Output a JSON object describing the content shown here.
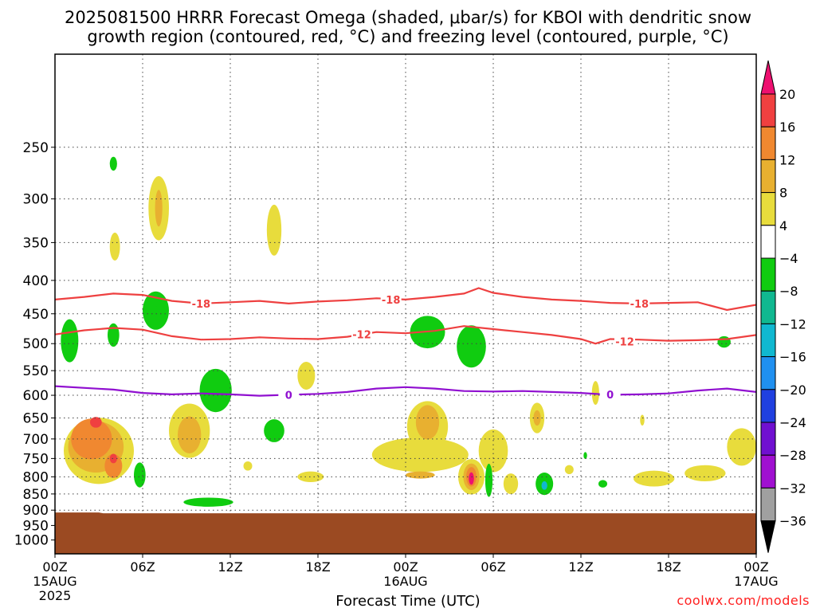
{
  "title": {
    "line1": "2025081500 HRRR Forecast Omega (shaded, μbar/s) for KBOI with dendritic snow",
    "line2": "growth region (contoured, red, °C) and freezing level (contoured, purple, °C)"
  },
  "site": "coolwx.com/models",
  "chart_data": {
    "type": "heatmap",
    "title": "2025081500 HRRR Forecast Omega (shaded, μbar/s) for KBOI with dendritic snow growth region (contoured, red, °C) and freezing level (contoured, purple, °C)",
    "xlabel": "Forecast Time (UTC)",
    "ylabel": "",
    "x_range_hours": [
      0,
      48
    ],
    "y_range_mb": [
      180,
      1050
    ],
    "y_scale": "log",
    "grid": true,
    "x_ticks": [
      {
        "h": 0,
        "label": "00Z",
        "sub1": "15AUG",
        "sub2": "2025"
      },
      {
        "h": 6,
        "label": "06Z",
        "sub1": "",
        "sub2": ""
      },
      {
        "h": 12,
        "label": "12Z",
        "sub1": "",
        "sub2": ""
      },
      {
        "h": 18,
        "label": "18Z",
        "sub1": "",
        "sub2": ""
      },
      {
        "h": 24,
        "label": "00Z",
        "sub1": "16AUG",
        "sub2": ""
      },
      {
        "h": 30,
        "label": "06Z",
        "sub1": "",
        "sub2": ""
      },
      {
        "h": 36,
        "label": "12Z",
        "sub1": "",
        "sub2": ""
      },
      {
        "h": 42,
        "label": "18Z",
        "sub1": "",
        "sub2": ""
      },
      {
        "h": 48,
        "label": "00Z",
        "sub1": "17AUG",
        "sub2": ""
      }
    ],
    "y_ticks": [
      250,
      300,
      350,
      400,
      450,
      500,
      550,
      600,
      650,
      700,
      750,
      800,
      850,
      900,
      950,
      1000
    ],
    "ground_pressure_mb": 910,
    "ground_color": "#9b4a22",
    "colorbar": {
      "levels": [
        "20",
        "16",
        "12",
        "8",
        "4",
        "−4",
        "−8",
        "−12",
        "−16",
        "−20",
        "−24",
        "−28",
        "−32",
        "−36"
      ],
      "colors": [
        "#ee1070",
        "#f04040",
        "#f08830",
        "#e8b030",
        "#e8dc3c",
        "#ffffff",
        "#10cc10",
        "#10b890",
        "#10b8d0",
        "#2090f0",
        "#2040e0",
        "#7010d0",
        "#a010d0",
        "#a0a0a0",
        "#000000"
      ]
    },
    "contours": [
      {
        "name": "−18 °C isotherm",
        "label": "-18",
        "color": "#ee4040",
        "points": [
          [
            0,
            428
          ],
          [
            2,
            424
          ],
          [
            4,
            419
          ],
          [
            6,
            421
          ],
          [
            8,
            430
          ],
          [
            10,
            434
          ],
          [
            12,
            432
          ],
          [
            14,
            430
          ],
          [
            16,
            434
          ],
          [
            18,
            431
          ],
          [
            20,
            429
          ],
          [
            22,
            426
          ],
          [
            24,
            428
          ],
          [
            26,
            424
          ],
          [
            28,
            419
          ],
          [
            29,
            411
          ],
          [
            30,
            418
          ],
          [
            32,
            424
          ],
          [
            34,
            428
          ],
          [
            36,
            430
          ],
          [
            38,
            433
          ],
          [
            40,
            434
          ],
          [
            42,
            433
          ],
          [
            44,
            432
          ],
          [
            46,
            444
          ],
          [
            48,
            436
          ]
        ],
        "label_at": [
          [
            10,
            434
          ],
          [
            23,
            428
          ],
          [
            40,
            434
          ]
        ]
      },
      {
        "name": "−12 °C isotherm",
        "label": "-12",
        "color": "#ee4040",
        "points": [
          [
            0,
            484
          ],
          [
            2,
            477
          ],
          [
            4,
            473
          ],
          [
            6,
            476
          ],
          [
            8,
            487
          ],
          [
            10,
            493
          ],
          [
            12,
            492
          ],
          [
            14,
            489
          ],
          [
            16,
            491
          ],
          [
            18,
            492
          ],
          [
            20,
            488
          ],
          [
            22,
            480
          ],
          [
            24,
            482
          ],
          [
            26,
            478
          ],
          [
            28,
            470
          ],
          [
            30,
            475
          ],
          [
            32,
            480
          ],
          [
            34,
            485
          ],
          [
            36,
            492
          ],
          [
            37,
            500
          ],
          [
            38,
            492
          ],
          [
            40,
            493
          ],
          [
            42,
            495
          ],
          [
            44,
            494
          ],
          [
            46,
            492
          ],
          [
            48,
            485
          ]
        ],
        "label_at": [
          [
            21,
            484
          ],
          [
            39,
            496
          ]
        ]
      },
      {
        "name": "0 °C freezing level",
        "label": "0",
        "color": "#9010d0",
        "points": [
          [
            0,
            581
          ],
          [
            4,
            588
          ],
          [
            6,
            595
          ],
          [
            8,
            598
          ],
          [
            10,
            596
          ],
          [
            12,
            598
          ],
          [
            14,
            601
          ],
          [
            16,
            599
          ],
          [
            18,
            597
          ],
          [
            20,
            593
          ],
          [
            22,
            586
          ],
          [
            24,
            583
          ],
          [
            26,
            586
          ],
          [
            28,
            591
          ],
          [
            30,
            592
          ],
          [
            32,
            591
          ],
          [
            34,
            593
          ],
          [
            36,
            595
          ],
          [
            38,
            599
          ],
          [
            40,
            598
          ],
          [
            42,
            596
          ],
          [
            44,
            590
          ],
          [
            46,
            586
          ],
          [
            48,
            593
          ]
        ],
        "label_at": [
          [
            16,
            599
          ],
          [
            38,
            598
          ]
        ]
      }
    ],
    "regions": [
      {
        "omega": 4,
        "h": 3.0,
        "p": 730,
        "dh": 2.4,
        "dp": 170
      },
      {
        "omega": 8,
        "h": 2.8,
        "p": 720,
        "dh": 1.9,
        "dp": 130
      },
      {
        "omega": 12,
        "h": 2.5,
        "p": 700,
        "dh": 1.4,
        "dp": 100
      },
      {
        "omega": 16,
        "h": 2.8,
        "p": 660,
        "dh": 0.4,
        "dp": 25
      },
      {
        "omega": 12,
        "h": 4.0,
        "p": 770,
        "dh": 0.6,
        "dp": 65
      },
      {
        "omega": 16,
        "h": 4.0,
        "p": 750,
        "dh": 0.25,
        "dp": 25
      },
      {
        "omega": 4,
        "h": 7.1,
        "p": 310,
        "dh": 0.7,
        "dp": 70
      },
      {
        "omega": 8,
        "h": 7.1,
        "p": 310,
        "dh": 0.25,
        "dp": 40
      },
      {
        "omega": 4,
        "h": 4.1,
        "p": 355,
        "dh": 0.35,
        "dp": 35
      },
      {
        "omega": 4,
        "h": 15.0,
        "p": 335,
        "dh": 0.5,
        "dp": 60
      },
      {
        "omega": 4,
        "h": 9.2,
        "p": 680,
        "dh": 1.4,
        "dp": 130
      },
      {
        "omega": 8,
        "h": 9.2,
        "p": 690,
        "dh": 0.8,
        "dp": 90
      },
      {
        "omega": 4,
        "h": 17.2,
        "p": 560,
        "dh": 0.6,
        "dp": 55
      },
      {
        "omega": 4,
        "h": 17.5,
        "p": 800,
        "dh": 0.9,
        "dp": 30
      },
      {
        "omega": 4,
        "h": 13.2,
        "p": 770,
        "dh": 0.3,
        "dp": 25
      },
      {
        "omega": 4,
        "h": 25.0,
        "p": 740,
        "dh": 3.3,
        "dp": 90
      },
      {
        "omega": 4,
        "h": 25.5,
        "p": 670,
        "dh": 1.4,
        "dp": 120
      },
      {
        "omega": 8,
        "h": 25.5,
        "p": 660,
        "dh": 0.8,
        "dp": 80
      },
      {
        "omega": 8,
        "h": 25.0,
        "p": 795,
        "dh": 1.0,
        "dp": 20
      },
      {
        "omega": 4,
        "h": 30.0,
        "p": 730,
        "dh": 1.0,
        "dp": 110
      },
      {
        "omega": 4,
        "h": 31.2,
        "p": 820,
        "dh": 0.5,
        "dp": 60
      },
      {
        "omega": 4,
        "h": 28.5,
        "p": 800,
        "dh": 0.9,
        "dp": 100
      },
      {
        "omega": 8,
        "h": 28.5,
        "p": 800,
        "dh": 0.55,
        "dp": 75
      },
      {
        "omega": 12,
        "h": 28.5,
        "p": 800,
        "dh": 0.35,
        "dp": 55
      },
      {
        "omega": 20,
        "h": 28.5,
        "p": 805,
        "dh": 0.18,
        "dp": 35
      },
      {
        "omega": 4,
        "h": 33.0,
        "p": 650,
        "dh": 0.5,
        "dp": 70
      },
      {
        "omega": 8,
        "h": 33.0,
        "p": 650,
        "dh": 0.25,
        "dp": 35
      },
      {
        "omega": 4,
        "h": 37.0,
        "p": 595,
        "dh": 0.25,
        "dp": 50
      },
      {
        "omega": 4,
        "h": 35.2,
        "p": 780,
        "dh": 0.3,
        "dp": 25
      },
      {
        "omega": 4,
        "h": 41.0,
        "p": 805,
        "dh": 1.4,
        "dp": 45
      },
      {
        "omega": 4,
        "h": 44.5,
        "p": 790,
        "dh": 1.4,
        "dp": 45
      },
      {
        "omega": 4,
        "h": 47.0,
        "p": 720,
        "dh": 1.0,
        "dp": 95
      },
      {
        "omega": 4,
        "h": 40.2,
        "p": 655,
        "dh": 0.15,
        "dp": 25
      },
      {
        "omega": -4,
        "h": 1.0,
        "p": 495,
        "dh": 0.6,
        "dp": 75
      },
      {
        "omega": -8,
        "h": 1.0,
        "p": 500,
        "dh": 0.25,
        "dp": 35
      },
      {
        "omega": -4,
        "h": 4.0,
        "p": 485,
        "dh": 0.4,
        "dp": 40
      },
      {
        "omega": -4,
        "h": 4.0,
        "p": 265,
        "dh": 0.25,
        "dp": 13
      },
      {
        "omega": -4,
        "h": 6.9,
        "p": 445,
        "dh": 0.9,
        "dp": 60
      },
      {
        "omega": -8,
        "h": 6.9,
        "p": 455,
        "dh": 0.3,
        "dp": 35
      },
      {
        "omega": -4,
        "h": 11.0,
        "p": 590,
        "dh": 1.1,
        "dp": 90
      },
      {
        "omega": -4,
        "h": 15.0,
        "p": 680,
        "dh": 0.7,
        "dp": 55
      },
      {
        "omega": -8,
        "h": 15.0,
        "p": 670,
        "dh": 0.2,
        "dp": 20
      },
      {
        "omega": -4,
        "h": 10.5,
        "p": 875,
        "dh": 1.7,
        "dp": 28
      },
      {
        "omega": -8,
        "h": 10.3,
        "p": 882,
        "dh": 0.4,
        "dp": 10
      },
      {
        "omega": -4,
        "h": 25.5,
        "p": 480,
        "dh": 1.2,
        "dp": 55
      },
      {
        "omega": -4,
        "h": 28.5,
        "p": 505,
        "dh": 1.0,
        "dp": 75
      },
      {
        "omega": -4,
        "h": 5.8,
        "p": 795,
        "dh": 0.4,
        "dp": 70
      },
      {
        "omega": -8,
        "h": 5.8,
        "p": 795,
        "dh": 0.15,
        "dp": 30
      },
      {
        "omega": -4,
        "h": 29.7,
        "p": 810,
        "dh": 0.25,
        "dp": 95
      },
      {
        "omega": -8,
        "h": 29.7,
        "p": 805,
        "dh": 0.1,
        "dp": 35
      },
      {
        "omega": -4,
        "h": 33.5,
        "p": 820,
        "dh": 0.6,
        "dp": 65
      },
      {
        "omega": -8,
        "h": 33.5,
        "p": 820,
        "dh": 0.35,
        "dp": 45
      },
      {
        "omega": -12,
        "h": 33.5,
        "p": 825,
        "dh": 0.2,
        "dp": 25
      },
      {
        "omega": -4,
        "h": 37.5,
        "p": 820,
        "dh": 0.3,
        "dp": 22
      },
      {
        "omega": -4,
        "h": 36.3,
        "p": 742,
        "dh": 0.12,
        "dp": 18
      },
      {
        "omega": -4,
        "h": 45.8,
        "p": 497,
        "dh": 0.45,
        "dp": 20
      }
    ]
  }
}
